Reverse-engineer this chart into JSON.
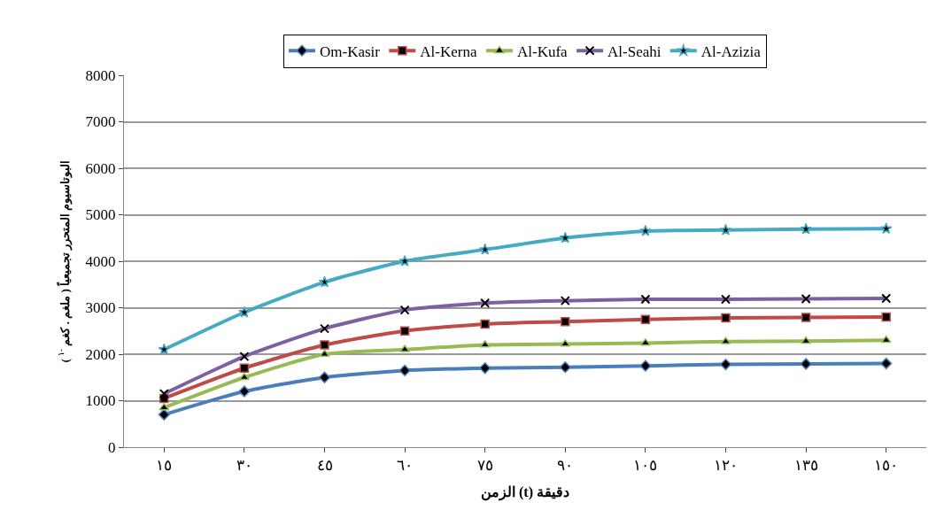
{
  "chart_data": {
    "type": "line",
    "xlabel": "الزمن (t) دقيقة",
    "ylabel": "البوتاسيوم المتحرر تجميعياً ( ملغم . كغم $^{-١}$ )",
    "categories": [
      "١٥",
      "٣٠",
      "٤٥",
      "٦٠",
      "٧٥",
      "٩٠",
      "١٠٥",
      "١٢٠",
      "١٣٥",
      "١٥٠"
    ],
    "ylim": [
      0,
      8000
    ],
    "yticks": [
      0,
      1000,
      2000,
      3000,
      4000,
      5000,
      6000,
      7000,
      8000
    ],
    "grid": "y",
    "legend": "top",
    "line_style": "solid",
    "series": [
      {
        "name": "Om-Kasir",
        "color": "#4a7ebb",
        "marker": "diamond",
        "values": [
          700,
          1200,
          1500,
          1650,
          1700,
          1720,
          1750,
          1780,
          1790,
          1800
        ]
      },
      {
        "name": "Al-Kerna",
        "color": "#be4b48",
        "marker": "square",
        "values": [
          1050,
          1700,
          2200,
          2500,
          2650,
          2700,
          2750,
          2780,
          2790,
          2800
        ]
      },
      {
        "name": "Al-Kufa",
        "color": "#98b954",
        "marker": "triangle",
        "values": [
          850,
          1500,
          2000,
          2100,
          2200,
          2220,
          2240,
          2270,
          2280,
          2300
        ]
      },
      {
        "name": "Al-Seahi",
        "color": "#7d60a0",
        "marker": "cross",
        "values": [
          1150,
          1950,
          2550,
          2950,
          3100,
          3150,
          3180,
          3180,
          3190,
          3200
        ]
      },
      {
        "name": "Al-Azizia",
        "color": "#46aac5",
        "marker": "star",
        "values": [
          2100,
          2900,
          3550,
          4000,
          4250,
          4500,
          4650,
          4670,
          4690,
          4700
        ]
      }
    ]
  }
}
